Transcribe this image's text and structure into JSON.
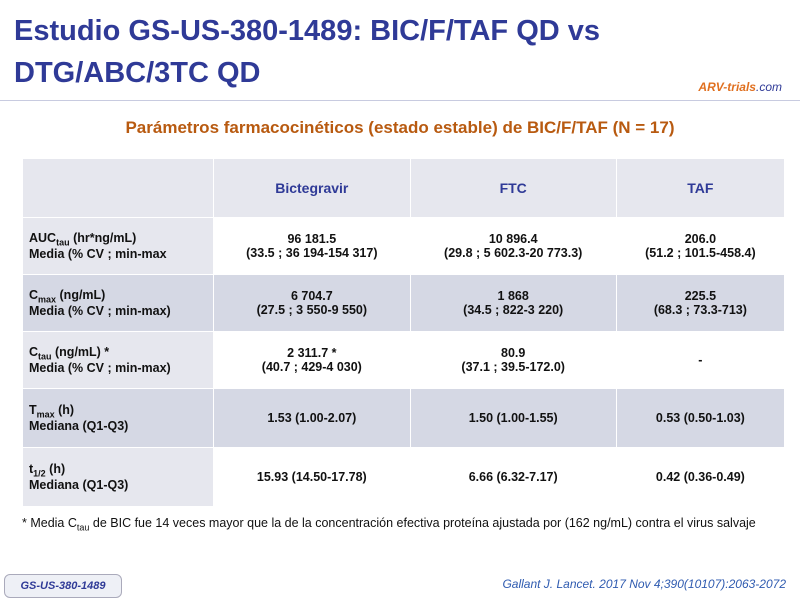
{
  "header": {
    "title": "Estudio GS-US-380-1489: BIC/F/TAF QD vs DTG/ABC/3TC QD",
    "logo": "ARV-trials",
    "logo_suffix": ".com"
  },
  "subtitle": "Parámetros farmacocinéticos (estado estable) de BIC/F/TAF (N = 17)",
  "table": {
    "columns": [
      "Bictegravir",
      "FTC",
      "TAF"
    ],
    "rows": [
      {
        "label": {
          "main": "AUC",
          "sub": "tau",
          "rest": " (hr*ng/mL)",
          "line2": "Media (% CV ; min-max"
        },
        "cells": [
          [
            "96 181.5",
            "(33.5 ; 36 194-154 317)"
          ],
          [
            "10 896.4",
            "(29.8 ; 5 602.3-20 773.3)"
          ],
          [
            "206.0",
            "(51.2 ; 101.5-458.4)"
          ]
        ]
      },
      {
        "label": {
          "main": "C",
          "sub": "max",
          "rest": " (ng/mL)",
          "line2": "Media (% CV ; min-max)"
        },
        "cells": [
          [
            "6 704.7",
            "(27.5 ; 3 550-9 550)"
          ],
          [
            "1 868",
            "(34.5 ; 822-3 220)"
          ],
          [
            "225.5",
            "(68.3 ; 73.3-713)"
          ]
        ]
      },
      {
        "label": {
          "main": "C",
          "sub": "tau",
          "rest": " (ng/mL) *",
          "line2": "Media (% CV ; min-max)"
        },
        "cells": [
          [
            "2 311.7 *",
            "(40.7 ; 429-4 030)"
          ],
          [
            "80.9",
            "(37.1 ; 39.5-172.0)"
          ],
          [
            "-"
          ]
        ]
      },
      {
        "label": {
          "main": "T",
          "sub": "max",
          "rest": " (h)",
          "line2": "Mediana (Q1-Q3)"
        },
        "cells": [
          [
            "1.53 (1.00-2.07)"
          ],
          [
            "1.50 (1.00-1.55)"
          ],
          [
            "0.53 (0.50-1.03)"
          ]
        ]
      },
      {
        "label": {
          "main": "t",
          "sub": "1/2",
          "rest": " (h)",
          "line2": "Mediana (Q1-Q3)"
        },
        "cells": [
          [
            "15.93 (14.50-17.78)"
          ],
          [
            "6.66 (6.32-7.17)"
          ],
          [
            "0.42 (0.36-0.49)"
          ]
        ]
      }
    ]
  },
  "footnote": {
    "main": "* Media C",
    "sub": "tau",
    "rest": " de BIC fue 14 veces mayor que la de la concentración efectiva proteína ajustada por (162 ng/mL) contra el virus salvaje"
  },
  "badge": "GS-US-380-1489",
  "citation": "Gallant J. Lancet. 2017 Nov 4;390(10107):2063-2072"
}
